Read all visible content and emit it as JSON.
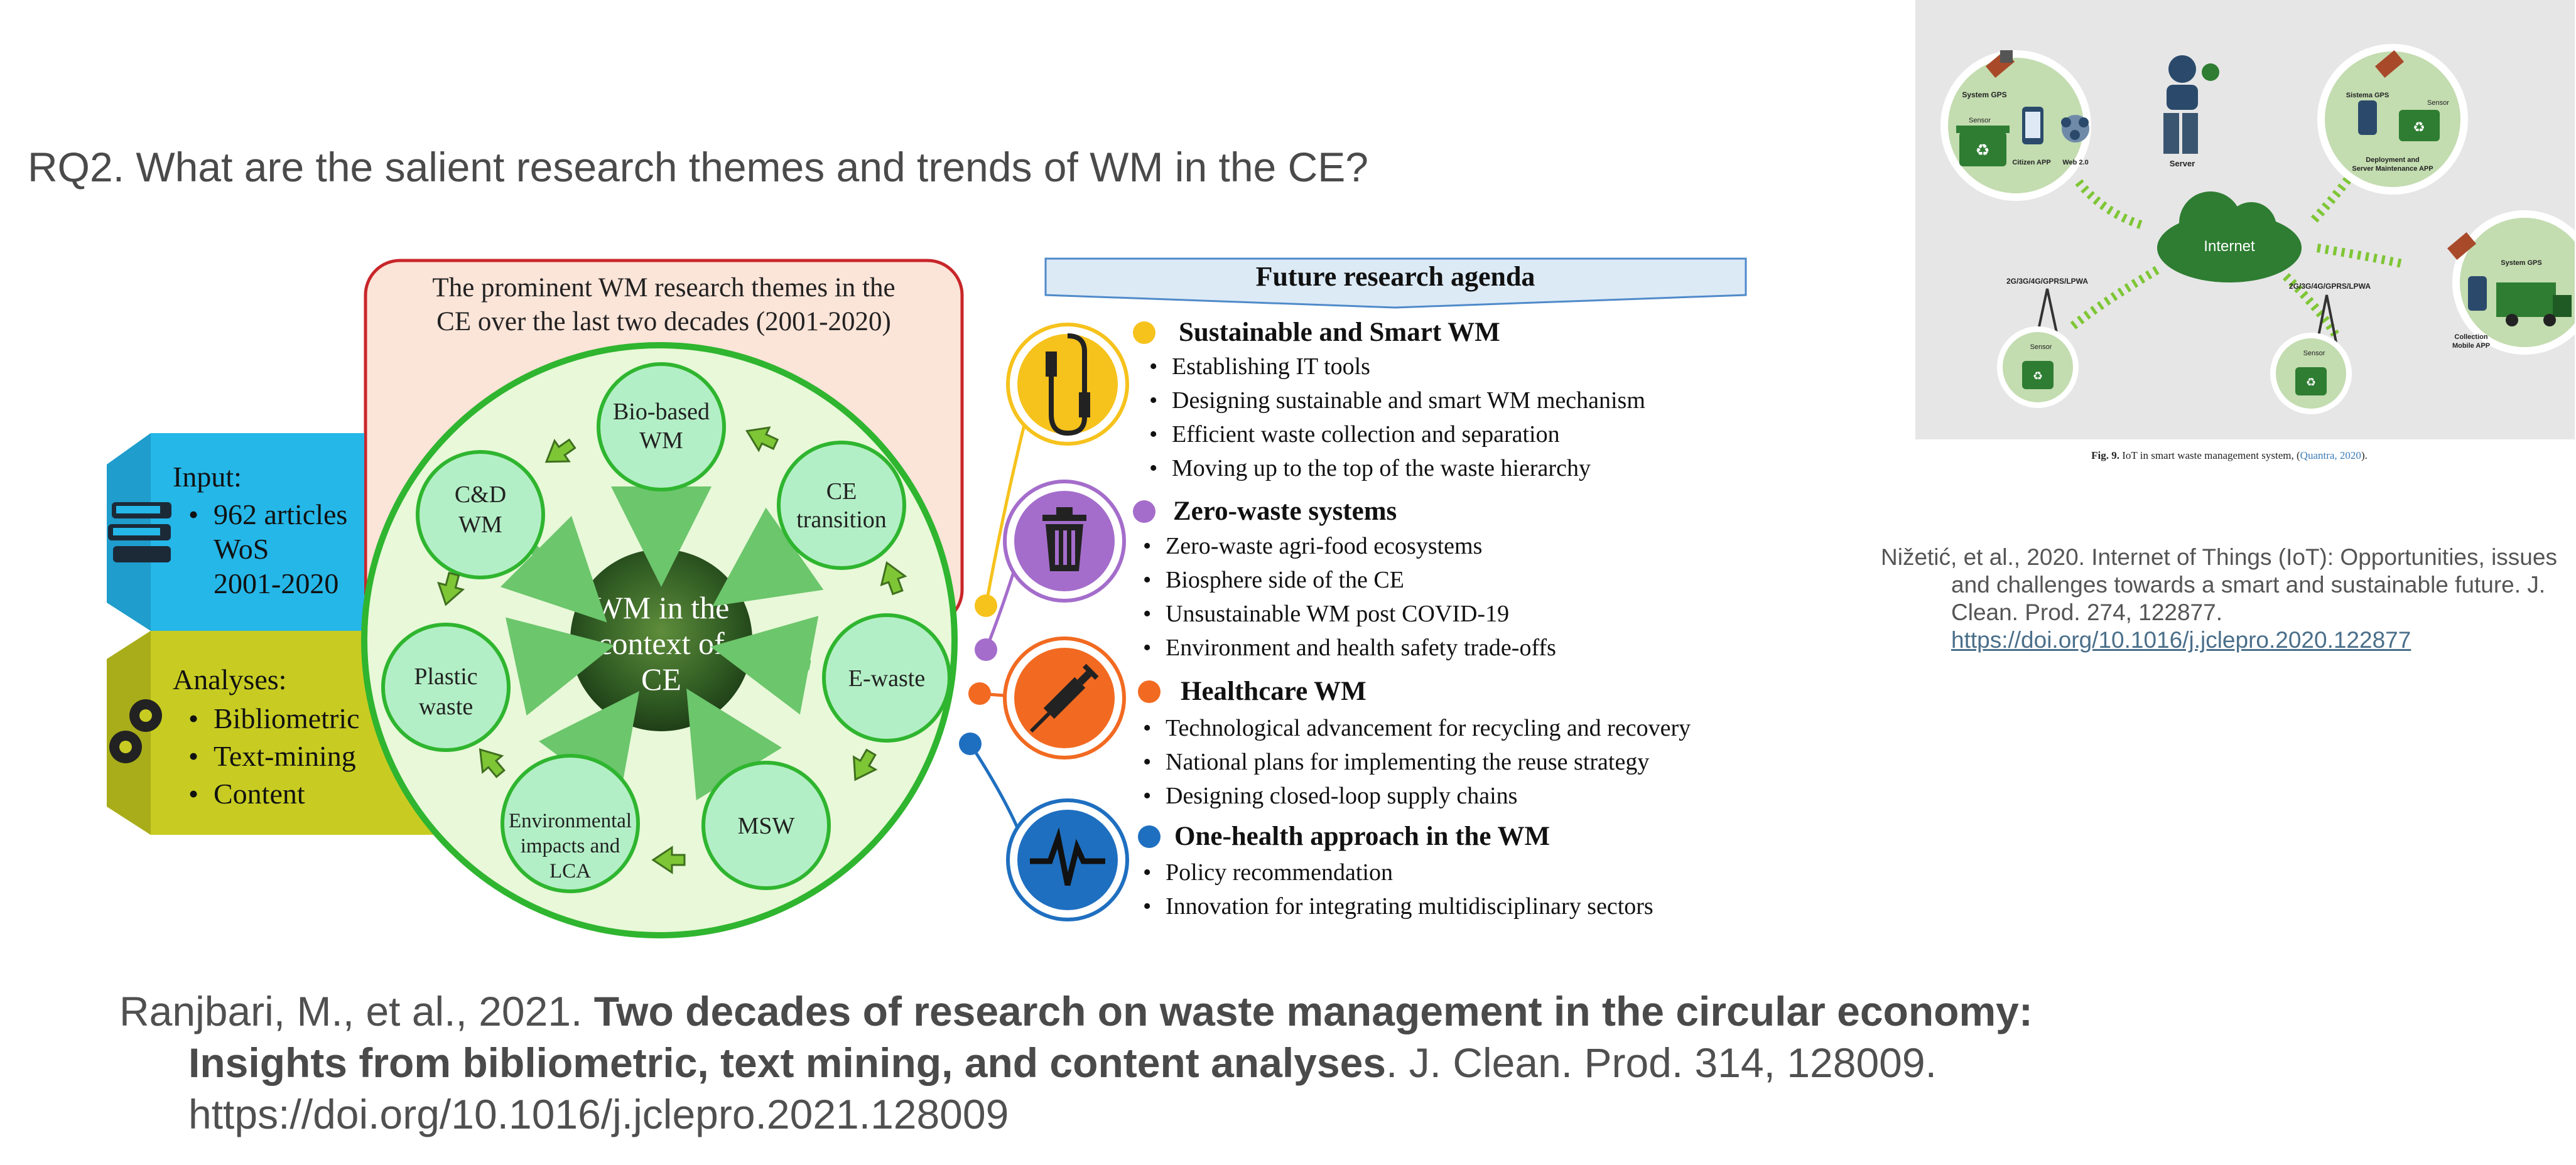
{
  "slide": {
    "title": "RQ2. What are the salient research themes and trends of WM in the CE?"
  },
  "diagram": {
    "themes_box_title_line1": "The prominent WM research themes in the",
    "themes_box_title_line2": "CE over the last two decades (2001-2020)",
    "center_line1": "WM in the",
    "center_line2": "context of",
    "center_line3": "CE",
    "themes": [
      {
        "line1": "Bio-based",
        "line2": "WM"
      },
      {
        "line1": "CE",
        "line2": "transition"
      },
      {
        "line1": "E-waste",
        "line2": ""
      },
      {
        "line1": "MSW",
        "line2": ""
      },
      {
        "line1": "Environmental",
        "line2": "impacts and",
        "line3": "LCA"
      },
      {
        "line1": "Plastic",
        "line2": "waste"
      },
      {
        "line1": "C&D",
        "line2": "WM"
      }
    ],
    "input": {
      "label": "Input:",
      "items": [
        "962 articles",
        "WoS",
        "2001-2020"
      ]
    },
    "analyses": {
      "label": "Analyses:",
      "items": [
        "Bibliometric",
        "Text-mining",
        "Content"
      ]
    },
    "agenda_title": "Future research agenda",
    "agenda": [
      {
        "heading": "Sustainable and Smart WM",
        "color": "#f6c21c",
        "items": [
          "Establishing IT tools",
          "Designing sustainable and smart WM mechanism",
          "Efficient waste collection and separation",
          "Moving up to the top of the waste hierarchy"
        ]
      },
      {
        "heading": "Zero-waste systems",
        "color": "#a46dcb",
        "items": [
          "Zero-waste agri-food ecosystems",
          "Biosphere side of the CE",
          "Unsustainable WM post COVID-19",
          "Environment and health safety trade-offs"
        ]
      },
      {
        "heading": "Healthcare WM",
        "color": "#f26a21",
        "items": [
          "Technological advancement for recycling and recovery",
          "National plans for implementing the reuse strategy",
          "Designing closed-loop supply chains"
        ]
      },
      {
        "heading": "One-health approach in the WM",
        "color": "#1f6fc0",
        "items": [
          "Policy recommendation",
          "Innovation for integrating multidisciplinary sectors"
        ]
      }
    ]
  },
  "references": {
    "main_authors": "Ranjbari, M., et al., 2021. ",
    "main_title": "Two decades of research on waste management in the circular economy: Insights from bibliometric, text mining, and content analyses",
    "main_rest": ". J. Clean. Prod. 314, 128009. https://doi.org/10.1016/j.jclepro.2021.128009",
    "side_text": "Nižetić, et al., 2020. Internet of Things (IoT): Opportunities, issues and challenges towards a smart and sustainable future. J. Clean. Prod. 274, 122877.",
    "side_link": "https://doi.org/10.1016/j.jclepro.2020.122877"
  },
  "iot_figure": {
    "cloud_label": "Internet",
    "server_label": "Server",
    "web_label": "Web 2.0",
    "citizen_app": "Citizen APP",
    "gps_left": "System GPS",
    "gps_right": "System GPS",
    "sistema_gps": "Sistema GPS",
    "deployment_app_line1": "Deployment and",
    "deployment_app_line2": "Server Maintenance APP",
    "collection_app_line1": "Collection",
    "collection_app_line2": "Mobile APP",
    "network_left": "2G/3G/4G/GPRS/LPWA",
    "network_right": "2G/3G/4G/GPRS/LPWA",
    "sensor_label": "Sensor",
    "caption_fig": "Fig. 9.",
    "caption_text": " IoT in smart waste management system, (",
    "caption_link": "Quantra, 2020",
    "caption_end": ")."
  },
  "colors": {
    "accent_green": "#2fb52f",
    "theme_fill": "#b3efc6",
    "input_blue": "#25b7e8",
    "analyses_yellow": "#c8cc22",
    "themes_box_fill": "#fbe4d8",
    "themes_box_border": "#c8262a"
  }
}
